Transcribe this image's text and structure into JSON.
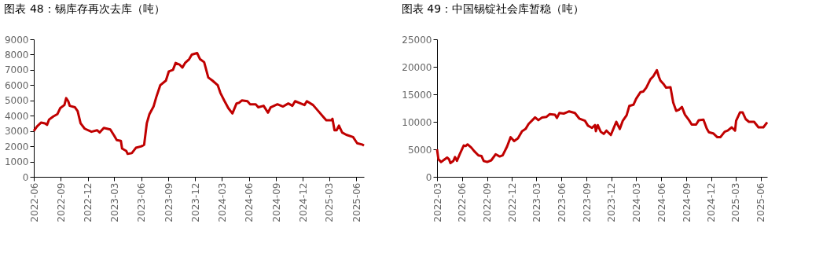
{
  "chart_data": [
    {
      "type": "line",
      "title": "图表 48：锡库存再次去库（吨）",
      "x": [
        "2022-06-01",
        "2022-06-12",
        "2022-06-26",
        "2022-07-09",
        "2022-07-16",
        "2022-07-23",
        "2022-08-06",
        "2022-08-20",
        "2022-08-30",
        "2022-09-13",
        "2022-09-19",
        "2022-09-26",
        "2022-10-01",
        "2022-10-19",
        "2022-10-28",
        "2022-11-07",
        "2022-11-21",
        "2022-12-14",
        "2023-01-02",
        "2023-01-11",
        "2023-01-25",
        "2023-02-16",
        "2023-03-01",
        "2023-03-10",
        "2023-03-24",
        "2023-03-28",
        "2023-04-11",
        "2023-04-16",
        "2023-04-30",
        "2023-05-14",
        "2023-06-02",
        "2023-06-11",
        "2023-06-20",
        "2023-06-29",
        "2023-07-13",
        "2023-07-22",
        "2023-08-05",
        "2023-08-24",
        "2023-09-03",
        "2023-09-17",
        "2023-09-26",
        "2023-10-09",
        "2023-10-19",
        "2023-10-28",
        "2023-11-11",
        "2023-11-20",
        "2023-12-08",
        "2023-12-18",
        "2024-01-01",
        "2024-01-15",
        "2024-01-29",
        "2024-02-16",
        "2024-02-25",
        "2024-03-09",
        "2024-03-23",
        "2024-04-06",
        "2024-04-20",
        "2024-04-29",
        "2024-05-08",
        "2024-05-27",
        "2024-06-05",
        "2024-06-24",
        "2024-07-03",
        "2024-07-21",
        "2024-08-05",
        "2024-08-14",
        "2024-09-06",
        "2024-09-25",
        "2024-10-13",
        "2024-10-27",
        "2024-11-05",
        "2024-11-24",
        "2024-12-07",
        "2024-12-15",
        "2025-01-05",
        "2025-01-23",
        "2025-02-10",
        "2025-02-19",
        "2025-03-08",
        "2025-03-12",
        "2025-03-19",
        "2025-03-26",
        "2025-04-03",
        "2025-04-14",
        "2025-04-28",
        "2025-05-21",
        "2025-06-04",
        "2025-06-23",
        "2025-06-27"
      ],
      "series": [
        {
          "color": "#c00000",
          "values": [
            3000,
            3300,
            3550,
            3500,
            3400,
            3750,
            3950,
            4100,
            4500,
            4700,
            5150,
            4950,
            4650,
            4550,
            4300,
            3500,
            3150,
            2950,
            3050,
            2900,
            3200,
            3100,
            2700,
            2400,
            2350,
            1850,
            1700,
            1500,
            1550,
            1900,
            2000,
            2100,
            3500,
            4100,
            4600,
            5200,
            6000,
            6300,
            6900,
            7000,
            7450,
            7350,
            7150,
            7450,
            7700,
            8000,
            8100,
            7700,
            7500,
            6500,
            6300,
            6000,
            5500,
            5000,
            4500,
            4150,
            4800,
            4850,
            5000,
            4950,
            4750,
            4750,
            4550,
            4650,
            4200,
            4550,
            4750,
            4600,
            4800,
            4650,
            4950,
            4800,
            4700,
            4950,
            4700,
            4300,
            3900,
            3700,
            3700,
            3800,
            3050,
            3050,
            3350,
            2900,
            2750,
            2600,
            2200,
            2100,
            2050
          ]
        }
      ],
      "xlim": [
        "2022-06-01",
        "2025-06-27"
      ],
      "xticks": [
        "2022-06",
        "2022-09",
        "2022-12",
        "2023-03",
        "2023-06",
        "2023-09",
        "2023-12",
        "2024-03",
        "2024-06",
        "2024-09",
        "2024-12",
        "2025-03",
        "2025-06"
      ],
      "ylim": [
        0,
        9000
      ],
      "yticks": [
        0,
        1000,
        2000,
        3000,
        4000,
        5000,
        6000,
        7000,
        8000,
        9000
      ]
    },
    {
      "type": "line",
      "title": "图表 49：中国锡锭社会库暂稳（吨）",
      "x": [
        "2022-03-01",
        "2022-03-06",
        "2022-03-16",
        "2022-03-27",
        "2022-04-07",
        "2022-04-14",
        "2022-04-19",
        "2022-04-30",
        "2022-05-06",
        "2022-05-13",
        "2022-05-24",
        "2022-06-07",
        "2022-06-14",
        "2022-06-21",
        "2022-07-05",
        "2022-07-15",
        "2022-07-31",
        "2022-08-11",
        "2022-08-19",
        "2022-09-01",
        "2022-09-16",
        "2022-10-02",
        "2022-10-17",
        "2022-10-28",
        "2022-11-13",
        "2022-11-26",
        "2022-12-09",
        "2022-12-23",
        "2023-01-07",
        "2023-01-20",
        "2023-01-31",
        "2023-02-14",
        "2023-02-24",
        "2023-03-08",
        "2023-03-22",
        "2023-04-07",
        "2023-04-19",
        "2023-05-08",
        "2023-05-15",
        "2023-05-24",
        "2023-06-09",
        "2023-06-19",
        "2023-06-29",
        "2023-07-20",
        "2023-08-05",
        "2023-08-26",
        "2023-09-06",
        "2023-09-21",
        "2023-10-02",
        "2023-10-05",
        "2023-10-12",
        "2023-10-23",
        "2023-11-03",
        "2023-11-13",
        "2023-11-29",
        "2023-12-09",
        "2023-12-19",
        "2024-01-01",
        "2024-01-12",
        "2024-01-26",
        "2024-02-05",
        "2024-02-20",
        "2024-03-01",
        "2024-03-17",
        "2024-03-27",
        "2024-04-07",
        "2024-04-22",
        "2024-05-03",
        "2024-05-16",
        "2024-05-24",
        "2024-05-29",
        "2024-06-09",
        "2024-06-19",
        "2024-07-05",
        "2024-07-15",
        "2024-07-26",
        "2024-08-05",
        "2024-08-16",
        "2024-08-27",
        "2024-09-11",
        "2024-09-21",
        "2024-10-07",
        "2024-10-17",
        "2024-11-03",
        "2024-11-15",
        "2024-11-23",
        "2024-12-09",
        "2024-12-24",
        "2025-01-04",
        "2025-01-20",
        "2025-01-31",
        "2025-02-15",
        "2025-02-27",
        "2025-03-03",
        "2025-03-17",
        "2025-03-27",
        "2025-04-07",
        "2025-04-19",
        "2025-05-08",
        "2025-05-24",
        "2025-06-11",
        "2025-06-25"
      ],
      "series": [
        {
          "color": "#c00000",
          "values": [
            5000,
            3200,
            2700,
            3100,
            3500,
            3200,
            2500,
            2900,
            3600,
            2900,
            4200,
            5700,
            5600,
            5900,
            5300,
            4700,
            3900,
            3800,
            2900,
            2700,
            3000,
            4100,
            3700,
            3900,
            5500,
            7200,
            6500,
            7000,
            8300,
            8700,
            9600,
            10300,
            10800,
            10300,
            10800,
            10900,
            11400,
            11300,
            10700,
            11600,
            11500,
            11700,
            11900,
            11600,
            10600,
            10200,
            9300,
            8900,
            9400,
            8300,
            9400,
            8200,
            7800,
            8400,
            7600,
            8800,
            10000,
            8700,
            10200,
            11200,
            12900,
            13100,
            14200,
            15400,
            15500,
            16200,
            17700,
            18300,
            19400,
            18100,
            17500,
            16900,
            16200,
            16300,
            13500,
            12000,
            12200,
            12700,
            11300,
            10300,
            9500,
            9500,
            10300,
            10400,
            8800,
            8100,
            7900,
            7200,
            7200,
            8200,
            8400,
            9000,
            8400,
            10200,
            11700,
            11700,
            10500,
            10000,
            10000,
            9000,
            9000,
            9900
          ]
        }
      ],
      "xlim": [
        "2022-03-01",
        "2025-06-25"
      ],
      "xticks": [
        "2022-03",
        "2022-06",
        "2022-09",
        "2022-12",
        "2023-03",
        "2023-06",
        "2023-09",
        "2023-12",
        "2024-03",
        "2024-06",
        "2024-09",
        "2024-12",
        "2025-03",
        "2025-06"
      ],
      "ylim": [
        0,
        25000
      ],
      "yticks": [
        0,
        5000,
        10000,
        15000,
        20000,
        25000
      ]
    }
  ]
}
